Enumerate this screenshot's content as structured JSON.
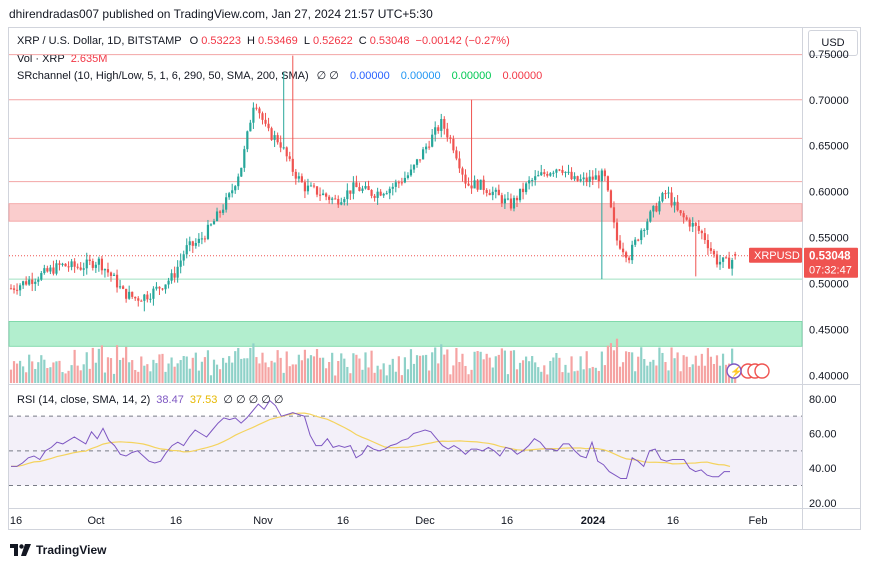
{
  "header": {
    "published": "dhirendradas007 published on TradingView.com, Jan 27, 2024 21:57 UTC+5:30"
  },
  "legend": {
    "symbol": "XRP / U.S. Dollar, 1D, BITSTAMP",
    "o_label": "O",
    "o": "0.53223",
    "h_label": "H",
    "h": "0.53469",
    "l_label": "L",
    "l": "0.52622",
    "c_label": "C",
    "c": "0.53048",
    "change": "−0.00142 (−0.27%)",
    "vol_label": "Vol · XRP",
    "vol": "2.635M",
    "sr_label": "SRchannel (10, High/Low, 5, 1, 6, 290, 50, SMA, 200, SMA)",
    "sr_dots": "∅ ∅",
    "sr_v1": "0.00000",
    "sr_v2": "0.00000",
    "sr_v3": "0.00000",
    "sr_v4": "0.00000",
    "rsi_label": "RSI (14, close, SMA, 14, 2)",
    "rsi_value": "38.47",
    "rsi_sma": "37.53",
    "rsi_dots": "∅ ∅ ∅ ∅ ∅"
  },
  "currency": "USD",
  "price_tag": {
    "symbol": "XRPUSD",
    "price": "0.53048",
    "countdown": "07:32:47"
  },
  "colors": {
    "up": "#26a69a",
    "down": "#ef5350",
    "rsi": "#7e57c2",
    "rsi_sma": "#f4d35e",
    "sr_blue": "#2962ff",
    "sr_green": "#089981",
    "sr_red": "#f23645"
  },
  "chart_data": {
    "type": "candlestick",
    "title": "XRP / U.S. Dollar, 1D, BITSTAMP",
    "x_ticks": [
      "16",
      "Oct",
      "16",
      "Nov",
      "16",
      "Dec",
      "16",
      "2024",
      "16",
      "Feb"
    ],
    "y_ticks": [
      "0.75000",
      "0.70000",
      "0.65000",
      "0.60000",
      "0.55000",
      "0.50000",
      "0.45000",
      "0.40000"
    ],
    "ylim": [
      0.391,
      0.778
    ],
    "resistance_lines": [
      0.749,
      0.7,
      0.658,
      0.611
    ],
    "zones": [
      {
        "name": "resistance",
        "low": 0.568,
        "high": 0.587
      },
      {
        "name": "support",
        "low": 0.432,
        "high": 0.459
      }
    ],
    "last_price_line": 0.53048,
    "rsi": {
      "title": "RSI (14, close, SMA, 14, 2)",
      "y_ticks": [
        "80.00",
        "60.00",
        "40.00",
        "20.00"
      ],
      "ylim": [
        17,
        88
      ],
      "upper_band": 70,
      "middle_band": 50,
      "lower_band": 30,
      "values": [
        41,
        41,
        43,
        46,
        47,
        45,
        50,
        52,
        55,
        54,
        56,
        58,
        56,
        54,
        61,
        57,
        63,
        56,
        53,
        48,
        47,
        49,
        50,
        47,
        44,
        43,
        44,
        49,
        53,
        55,
        53,
        58,
        62,
        60,
        58,
        62,
        66,
        69,
        68,
        69,
        66,
        69,
        73,
        77,
        74,
        79,
        76,
        70,
        71,
        72,
        71,
        70,
        59,
        53,
        53,
        57,
        52,
        53,
        52,
        53,
        46,
        48,
        53,
        51,
        50,
        51,
        53,
        54,
        56,
        57,
        60,
        61,
        62,
        61,
        57,
        53,
        51,
        53,
        51,
        48,
        51,
        51,
        50,
        52,
        50,
        47,
        52,
        51,
        48,
        50,
        53,
        57,
        55,
        51,
        51,
        50,
        54,
        54,
        50,
        47,
        46,
        55,
        44,
        42,
        38,
        36,
        34,
        34,
        46,
        44,
        41,
        50,
        51,
        45,
        44,
        45,
        45,
        45,
        40,
        38,
        39,
        36,
        35,
        35,
        38,
        38
      ]
    }
  }
}
